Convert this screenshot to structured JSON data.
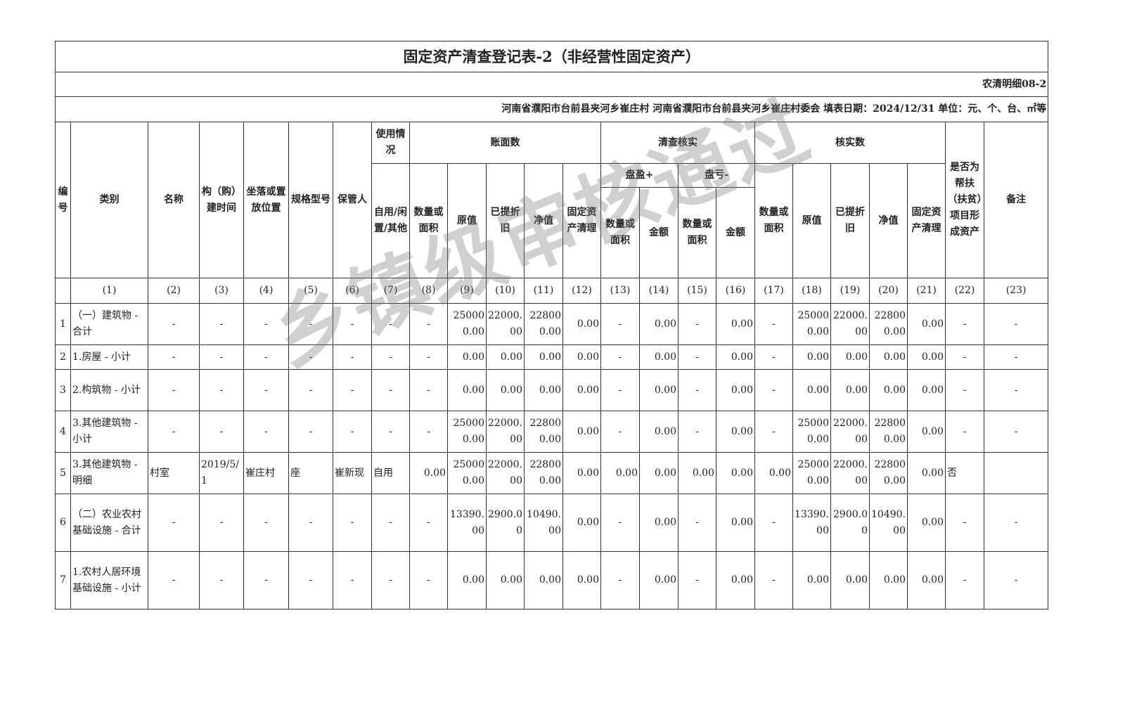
{
  "title": "固定资产清查登记表-2（非经营性固定资产）",
  "form_code": "农清明细08-2",
  "info_line": "河南省濮阳市台前县夹河乡崔庄村  河南省濮阳市台前县夹河乡崔庄村委会  填表日期：2024/12/31   单位：元、个、台、㎡等",
  "watermark": "乡镇级审核通过",
  "headers": {
    "no": "编号",
    "category": "类别",
    "name": "名称",
    "build_time": "构（购）建时间",
    "location": "坐落或置放位置",
    "spec": "规格型号",
    "keeper": "保管人",
    "usage": "使用情况",
    "usage_sub": "自用/闲置/其他",
    "book": "账面数",
    "check": "清查核实",
    "verified": "核实数",
    "poverty": "是否为帮扶（扶贫）项目形成资产",
    "remark": "备注",
    "qty": "数量或面积",
    "orig": "原值",
    "depr": "已提折旧",
    "net": "净值",
    "clear": "固定资产清理",
    "surplus": "盘盈+",
    "loss": "盘亏-",
    "qty2": "数量或面积",
    "amount": "金额"
  },
  "index_row": [
    "",
    "(1)",
    "(2)",
    "(3)",
    "(4)",
    "(5)",
    "(6)",
    "(7)",
    "(8)",
    "(9)",
    "(10)",
    "(11)",
    "(12)",
    "(13)",
    "(14)",
    "(15)",
    "(16)",
    "(17)",
    "(18)",
    "(19)",
    "(20)",
    "(21)",
    "(22)",
    "(23)"
  ],
  "rows": [
    [
      "1",
      "（一）建筑物 - 合计",
      "-",
      "-",
      "-",
      "-",
      "-",
      "-",
      "-",
      "250000.00",
      "22000.00",
      "228000.00",
      "0.00",
      "-",
      "0.00",
      "-",
      "0.00",
      "-",
      "250000.00",
      "22000.00",
      "228000.00",
      "0.00",
      "-",
      "-"
    ],
    [
      "2",
      "1.房屋 - 小计",
      "-",
      "-",
      "-",
      "-",
      "-",
      "-",
      "-",
      "0.00",
      "0.00",
      "0.00",
      "0.00",
      "-",
      "0.00",
      "-",
      "0.00",
      "-",
      "0.00",
      "0.00",
      "0.00",
      "0.00",
      "-",
      "-"
    ],
    [
      "3",
      "2.构筑物 - 小计",
      "-",
      "-",
      "-",
      "-",
      "-",
      "-",
      "-",
      "0.00",
      "0.00",
      "0.00",
      "0.00",
      "-",
      "0.00",
      "-",
      "0.00",
      "-",
      "0.00",
      "0.00",
      "0.00",
      "0.00",
      "-",
      "-"
    ],
    [
      "4",
      "3.其他建筑物 - 小计",
      "-",
      "-",
      "-",
      "-",
      "-",
      "-",
      "-",
      "250000.00",
      "22000.00",
      "228000.00",
      "0.00",
      "-",
      "0.00",
      "-",
      "0.00",
      "-",
      "250000.00",
      "22000.00",
      "228000.00",
      "0.00",
      "-",
      "-"
    ],
    [
      "5",
      "3.其他建筑物 - 明细",
      "村室",
      "2019/5/1",
      "崔庄村",
      "座",
      "崔新现",
      "自用",
      "0.00",
      "250000.00",
      "22000.00",
      "228000.00",
      "0.00",
      "0.00",
      "0.00",
      "0.00",
      "0.00",
      "0.00",
      "250000.00",
      "22000.00",
      "228000.00",
      "0.00",
      "否",
      ""
    ],
    [
      "6",
      "（二）农业农村基础设施 - 合计",
      "-",
      "-",
      "-",
      "-",
      "-",
      "-",
      "-",
      "13390.00",
      "2900.00",
      "10490.00",
      "0.00",
      "-",
      "0.00",
      "-",
      "0.00",
      "-",
      "13390.00",
      "2900.00",
      "10490.00",
      "0.00",
      "-",
      "-"
    ],
    [
      "7",
      "1.农村人居环境基础设施 - 小计",
      "-",
      "-",
      "-",
      "-",
      "-",
      "-",
      "-",
      "0.00",
      "0.00",
      "0.00",
      "0.00",
      "-",
      "0.00",
      "-",
      "0.00",
      "-",
      "0.00",
      "0.00",
      "0.00",
      "0.00",
      "-",
      "-"
    ]
  ]
}
